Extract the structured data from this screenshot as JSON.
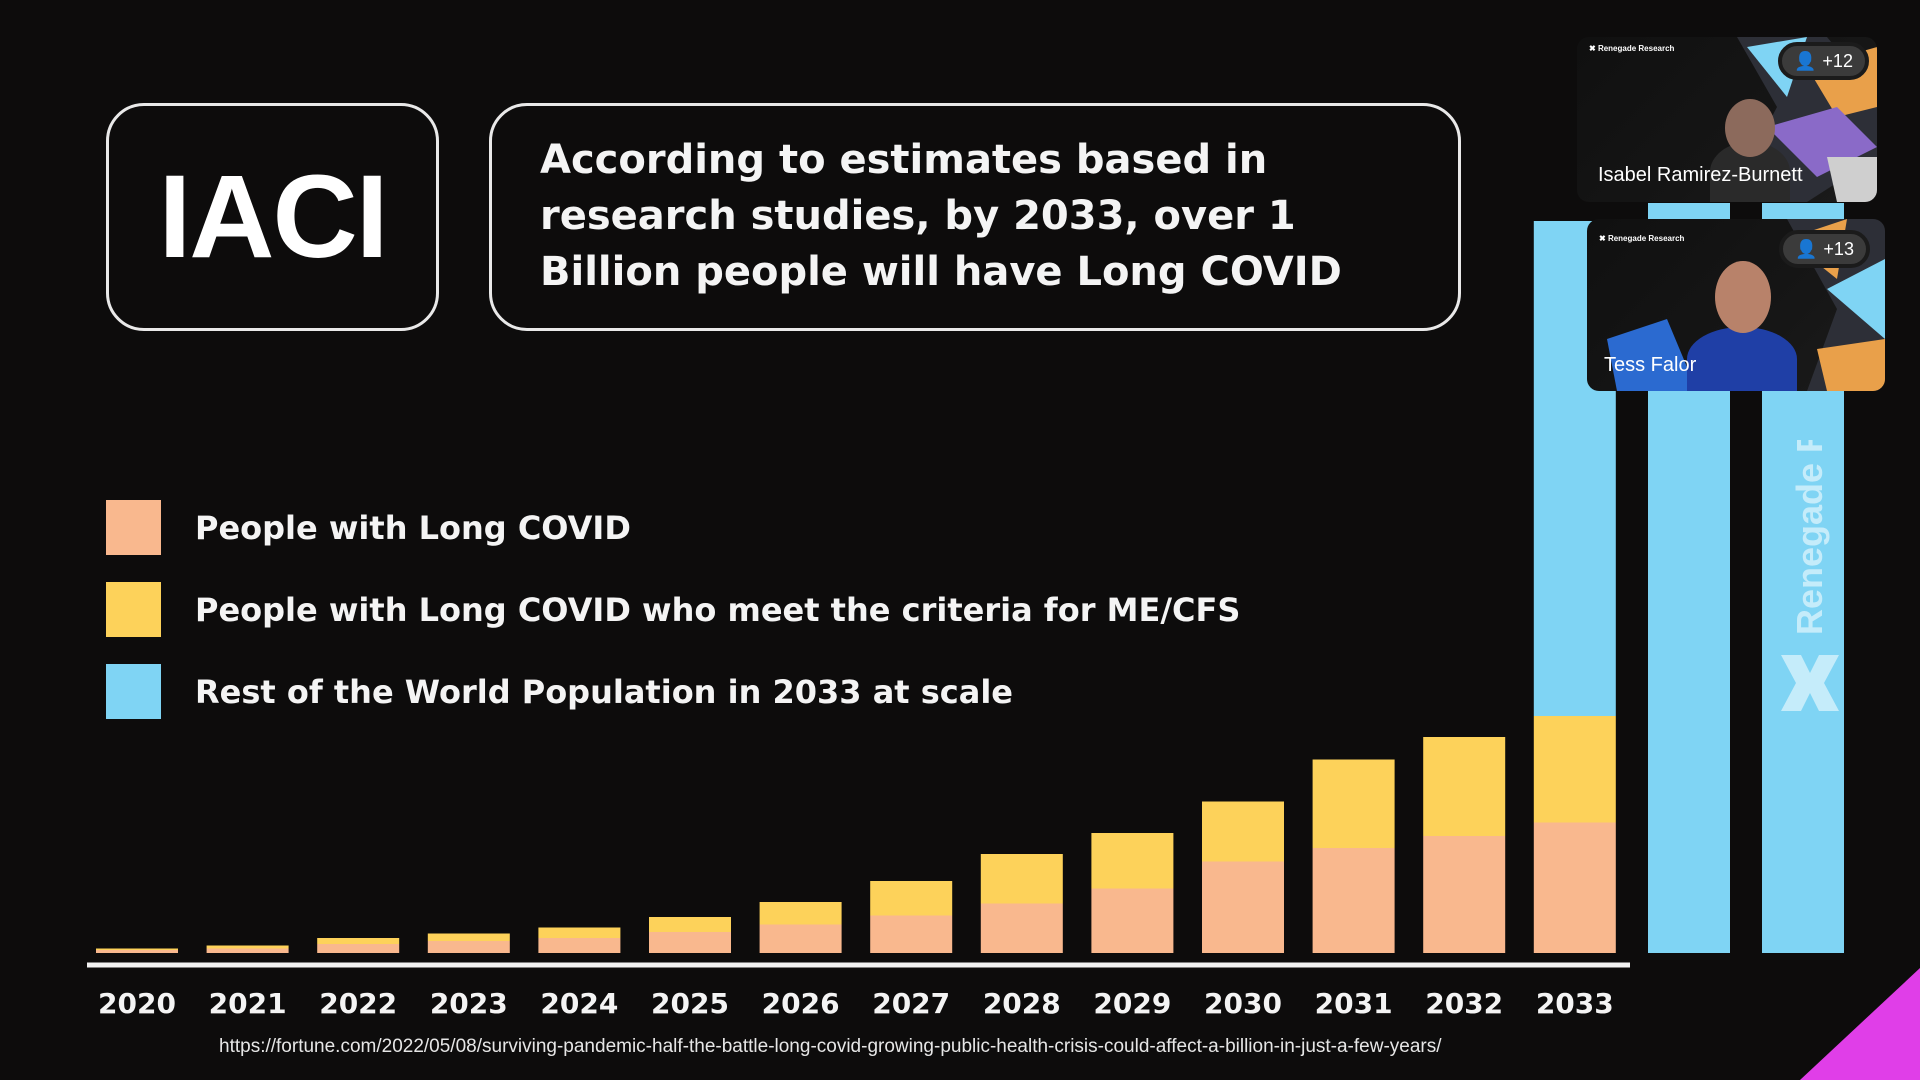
{
  "slide": {
    "logo_text": "IACI",
    "headline": "According to estimates based in research studies, by 2033, over 1 Billion people will have Long COVID",
    "source_url": "https://fortune.com/2022/05/08/surviving-pandemic-half-the-battle-long-covid-growing-public-health-crisis-could-affect-a-billion-in-just-a-few-years/",
    "brand_watermark": "Renegade Research",
    "colors": {
      "background": "#0d0c0c",
      "long_covid": "#f9b88e",
      "me_cfs": "#fdd25a",
      "rest_of_world": "#7fd4f4",
      "accent_corner": "#e03ee8"
    }
  },
  "legend": [
    {
      "label": "People with Long COVID",
      "color": "#f9b88e"
    },
    {
      "label": "People with Long COVID who meet the criteria for ME/CFS",
      "color": "#fdd25a"
    },
    {
      "label": "Rest of the World Population in 2033 at scale",
      "color": "#7fd4f4"
    }
  ],
  "chart_data": {
    "type": "bar",
    "stacked": true,
    "title": "",
    "xlabel": "",
    "ylabel": "",
    "grid": false,
    "categories": [
      "2020",
      "2021",
      "2022",
      "2023",
      "2024",
      "2025",
      "2026",
      "2027",
      "2028",
      "2029",
      "2030",
      "2031",
      "2032",
      "2033"
    ],
    "series": [
      {
        "name": "People with Long COVID",
        "color": "#f9b88e",
        "values": [
          2,
          3,
          6,
          8,
          10,
          14,
          19,
          25,
          33,
          43,
          61,
          70,
          78,
          87
        ]
      },
      {
        "name": "People with Long COVID who meet the criteria for ME/CFS",
        "color": "#fdd25a",
        "values": [
          1,
          2,
          4,
          5,
          7,
          10,
          15,
          23,
          33,
          37,
          40,
          59,
          66,
          71
        ]
      },
      {
        "name": "Rest of the World Population in 2033 at scale",
        "color": "#7fd4f4",
        "values": [
          0,
          0,
          0,
          0,
          0,
          0,
          0,
          0,
          0,
          0,
          0,
          0,
          0,
          330
        ]
      }
    ],
    "extra_columns": [
      {
        "color": "#7fd4f4",
        "value": 500
      },
      {
        "color": "#7fd4f4",
        "value": 500
      }
    ],
    "ylim": [
      0,
      500
    ]
  },
  "participants": [
    {
      "name": "Isabel Ramirez-Burnett",
      "badge": "+12",
      "logo": "Renegade Research"
    },
    {
      "name": "Tess Falor",
      "badge": "+13",
      "logo": "Renegade Research"
    }
  ]
}
